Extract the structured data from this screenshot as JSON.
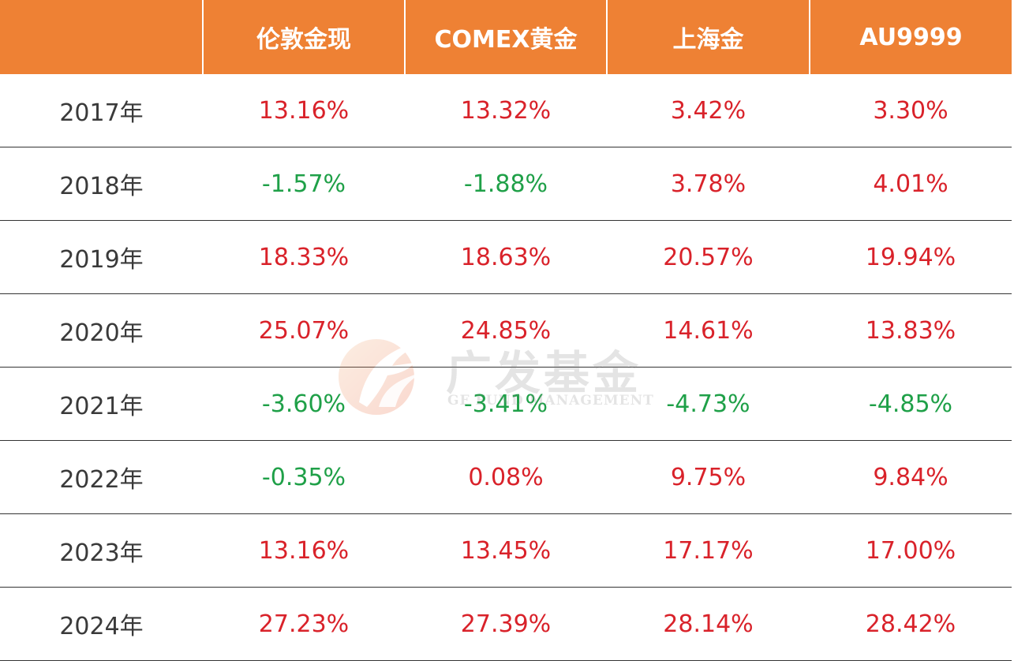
{
  "header": {
    "corner": "",
    "columns": [
      "伦敦金现",
      "COMEX黄金",
      "上海金",
      "AU9999"
    ]
  },
  "rows": [
    {
      "year": "2017年",
      "values": [
        "13.16%",
        "13.32%",
        "3.42%",
        "3.30%"
      ]
    },
    {
      "year": "2018年",
      "values": [
        "-1.57%",
        "-1.88%",
        "3.78%",
        "4.01%"
      ]
    },
    {
      "year": "2019年",
      "values": [
        "18.33%",
        "18.63%",
        "20.57%",
        "19.94%"
      ]
    },
    {
      "year": "2020年",
      "values": [
        "25.07%",
        "24.85%",
        "14.61%",
        "13.83%"
      ]
    },
    {
      "year": "2021年",
      "values": [
        "-3.60%",
        "-3.41%",
        "-4.73%",
        "-4.85%"
      ]
    },
    {
      "year": "2022年",
      "values": [
        "-0.35%",
        "0.08%",
        "9.75%",
        "9.84%"
      ]
    },
    {
      "year": "2023年",
      "values": [
        "13.16%",
        "13.45%",
        "17.17%",
        "17.00%"
      ]
    },
    {
      "year": "2024年",
      "values": [
        "27.23%",
        "27.39%",
        "28.14%",
        "28.42%"
      ]
    }
  ],
  "colors": {
    "header_bg": "#ee8134",
    "positive": "#d9222a",
    "negative": "#1fa048",
    "year_text": "#3a3a3a"
  },
  "watermark": {
    "cn": "广发基金",
    "en": "GF FUND MANAGEMENT",
    "icon": "gf-logo-icon"
  }
}
